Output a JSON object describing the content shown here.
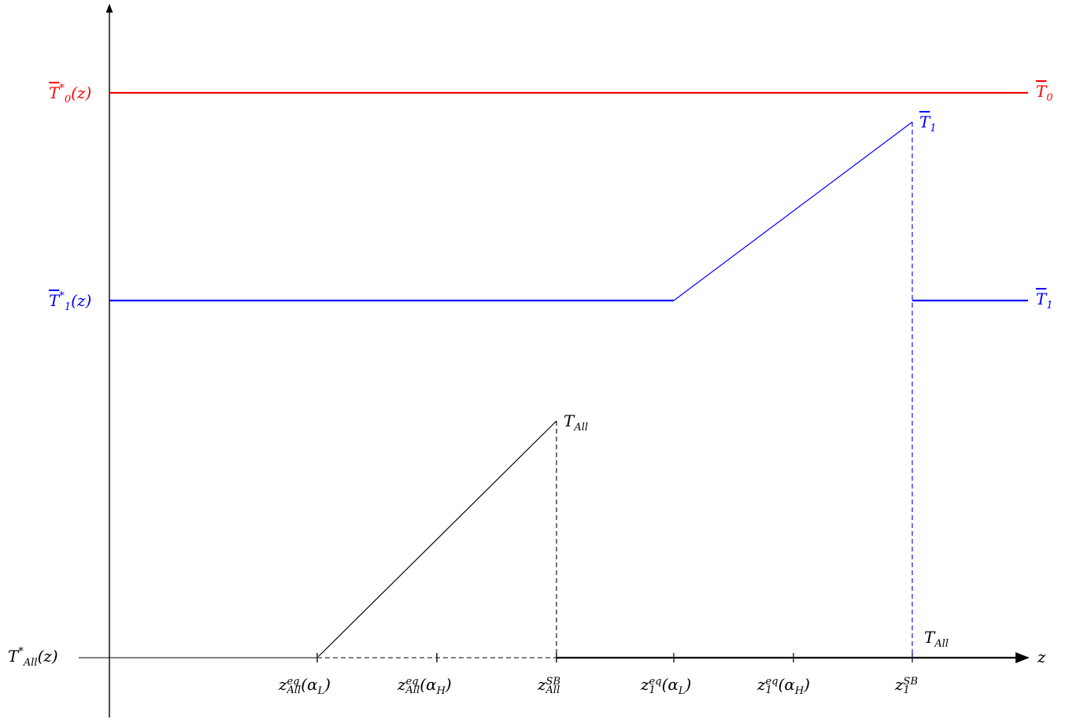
{
  "colors": {
    "t0": "#ff0000",
    "t1": "#0000ff",
    "t_all": "#000000"
  },
  "axes": {
    "x_label": "z"
  },
  "y_labels": {
    "t0": {
      "base": "T",
      "sub": "0",
      "sup": "*",
      "arg": "(z)"
    },
    "t1": {
      "base": "T",
      "sub": "1",
      "sup": "*",
      "arg": "(z)"
    },
    "t_all": {
      "base": "T",
      "sub": "All",
      "sup": "*",
      "arg": "(z)"
    }
  },
  "curve_labels": {
    "t0_right": {
      "base": "T",
      "sub": "0"
    },
    "t1_peak": {
      "base": "T",
      "sub": "1"
    },
    "t1_right": {
      "base": "T",
      "sub": "1"
    },
    "t_all_peak": {
      "base": "T",
      "sub": "All"
    },
    "t_all_right": {
      "base": "T",
      "sub": "All"
    }
  },
  "x_ticks": [
    {
      "base": "z",
      "sup": "eq",
      "sub": "All",
      "arg": "(α",
      "arg_sub": "L",
      "arg_end": ")"
    },
    {
      "base": "z",
      "sup": "eq",
      "sub": "All",
      "arg": "(α",
      "arg_sub": "H",
      "arg_end": ")"
    },
    {
      "base": "z",
      "sup": "SB",
      "sub": "All",
      "arg": "",
      "arg_sub": "",
      "arg_end": ""
    },
    {
      "base": "z",
      "sup": "eq",
      "sub": "1",
      "arg": "(α",
      "arg_sub": "L",
      "arg_end": ")"
    },
    {
      "base": "z",
      "sup": "eq",
      "sub": "1",
      "arg": "(α",
      "arg_sub": "H",
      "arg_end": ")"
    },
    {
      "base": "z",
      "sup": "SB",
      "sub": "1",
      "arg": "",
      "arg_sub": "",
      "arg_end": ""
    }
  ]
}
